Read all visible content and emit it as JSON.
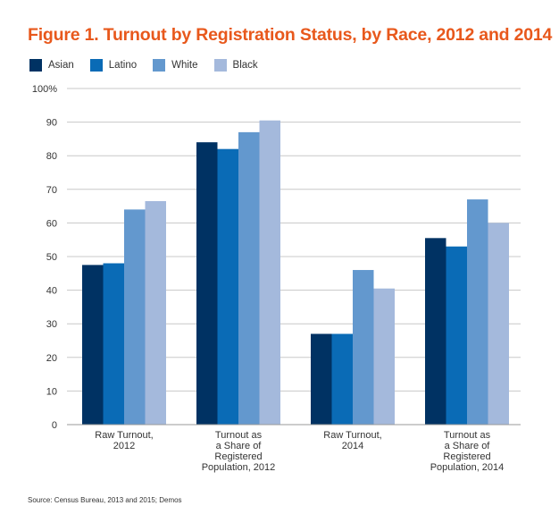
{
  "chart_data": {
    "type": "bar",
    "title": "Figure 1. Turnout by Registration Status, by Race, 2012 and 2014",
    "categories": [
      [
        "Raw Turnout,",
        "2012"
      ],
      [
        "Turnout as",
        "a Share of",
        "Registered",
        "Population, 2012"
      ],
      [
        "Raw Turnout,",
        "2014"
      ],
      [
        "Turnout as",
        "a Share of",
        "Registered",
        "Population, 2014"
      ]
    ],
    "series": [
      {
        "name": "Asian",
        "color": "#003263",
        "values": [
          47.5,
          84,
          27,
          55.5
        ]
      },
      {
        "name": "Latino",
        "color": "#0a6bb6",
        "values": [
          48,
          82,
          27,
          53
        ]
      },
      {
        "name": "White",
        "color": "#6398ce",
        "values": [
          64,
          87,
          46,
          67
        ]
      },
      {
        "name": "Black",
        "color": "#a4b9dc",
        "values": [
          66.5,
          90.5,
          40.5,
          60
        ]
      }
    ],
    "yticks": [
      "0",
      "10",
      "20",
      "30",
      "40",
      "50",
      "60",
      "70",
      "80",
      "90",
      "100%"
    ],
    "ylim": [
      0,
      100
    ],
    "xlabel": "",
    "ylabel": "",
    "grid": true,
    "legend": "top-left"
  },
  "source": "Source: Census Bureau, 2013 and 2015; Demos"
}
